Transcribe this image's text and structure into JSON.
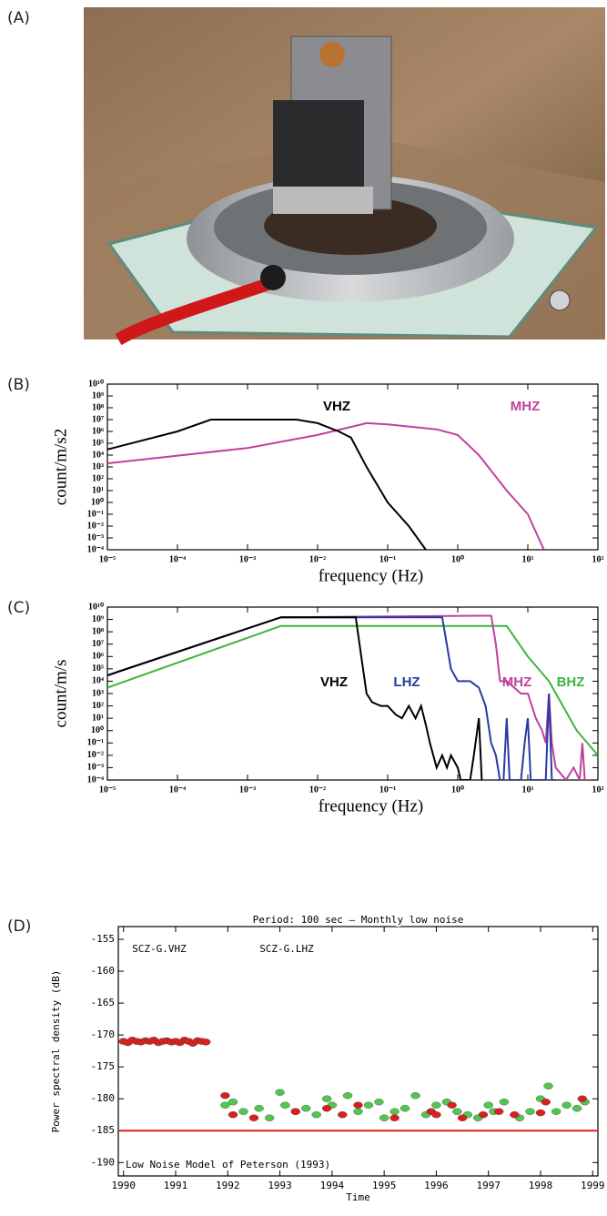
{
  "panel_labels": [
    "(A)",
    "(B)",
    "(C)",
    "(D)"
  ],
  "chart_data": [
    {
      "type": "line",
      "log_x": true,
      "log_y": true,
      "xlabel": "frequency (Hz)",
      "ylabel": "count/m/s2",
      "xlim": [
        1e-05,
        100
      ],
      "ylim": [
        0.0001,
        10000000000
      ],
      "xticks": [
        {
          "value": 1e-05,
          "label": "10⁻⁵"
        },
        {
          "value": 0.0001,
          "label": "10⁻⁴"
        },
        {
          "value": 0.001,
          "label": "10⁻³"
        },
        {
          "value": 0.01,
          "label": "10⁻²"
        },
        {
          "value": 0.1,
          "label": "10⁻¹"
        },
        {
          "value": 1,
          "label": "10⁰"
        },
        {
          "value": 10,
          "label": "10¹"
        },
        {
          "value": 100,
          "label": "10²"
        }
      ],
      "yticks": [
        {
          "value": 0.0001,
          "label": "10⁻⁴"
        },
        {
          "value": 0.001,
          "label": "10⁻³"
        },
        {
          "value": 0.01,
          "label": "10⁻²"
        },
        {
          "value": 0.1,
          "label": "10⁻¹"
        },
        {
          "value": 1,
          "label": "10⁰"
        },
        {
          "value": 10,
          "label": "10¹"
        },
        {
          "value": 100,
          "label": "10²"
        },
        {
          "value": 1000,
          "label": "10³"
        },
        {
          "value": 10000,
          "label": "10⁴"
        },
        {
          "value": 100000,
          "label": "10⁵"
        },
        {
          "value": 1000000,
          "label": "10⁶"
        },
        {
          "value": 10000000,
          "label": "10⁷"
        },
        {
          "value": 100000000,
          "label": "10⁸"
        },
        {
          "value": 1000000000,
          "label": "10⁹"
        },
        {
          "value": 10000000000,
          "label": "10¹⁰"
        }
      ],
      "series": [
        {
          "name": "VHZ",
          "color": "#000000",
          "x": [
            1e-05,
            0.0001,
            0.0003,
            0.001,
            0.005,
            0.01,
            0.02,
            0.03,
            0.05,
            0.1,
            0.2,
            0.35
          ],
          "values": [
            30000,
            1000000,
            10000000,
            10000000,
            10000000,
            5000000,
            1000000,
            300000,
            1000,
            1,
            0.01,
            0.0001
          ]
        },
        {
          "name": "MHZ",
          "color": "#c040a0",
          "x": [
            1e-05,
            0.001,
            0.01,
            0.05,
            0.1,
            0.5,
            1,
            2,
            5,
            10,
            17
          ],
          "values": [
            2000,
            40000,
            500000,
            5000000,
            4000000,
            1500000,
            500000,
            10000,
            10,
            0.1,
            0.0001
          ]
        }
      ]
    },
    {
      "type": "line",
      "log_x": true,
      "log_y": true,
      "xlabel": "frequency (Hz)",
      "ylabel": "count/m/s",
      "xlim": [
        1e-05,
        100
      ],
      "ylim": [
        0.0001,
        10000000000
      ],
      "xticks": [
        {
          "value": 1e-05,
          "label": "10⁻⁵"
        },
        {
          "value": 0.0001,
          "label": "10⁻⁴"
        },
        {
          "value": 0.001,
          "label": "10⁻³"
        },
        {
          "value": 0.01,
          "label": "10⁻²"
        },
        {
          "value": 0.1,
          "label": "10⁻¹"
        },
        {
          "value": 1,
          "label": "10⁰"
        },
        {
          "value": 10,
          "label": "10¹"
        },
        {
          "value": 100,
          "label": "10²"
        }
      ],
      "yticks": [
        {
          "value": 0.0001,
          "label": "10⁻⁴"
        },
        {
          "value": 0.001,
          "label": "10⁻³"
        },
        {
          "value": 0.01,
          "label": "10⁻²"
        },
        {
          "value": 0.1,
          "label": "10⁻¹"
        },
        {
          "value": 1,
          "label": "10⁰"
        },
        {
          "value": 10,
          "label": "10¹"
        },
        {
          "value": 100,
          "label": "10²"
        },
        {
          "value": 1000,
          "label": "10³"
        },
        {
          "value": 10000,
          "label": "10⁴"
        },
        {
          "value": 100000,
          "label": "10⁵"
        },
        {
          "value": 1000000,
          "label": "10⁶"
        },
        {
          "value": 10000000,
          "label": "10⁷"
        },
        {
          "value": 100000000,
          "label": "10⁸"
        },
        {
          "value": 1000000000,
          "label": "10⁹"
        },
        {
          "value": 10000000000,
          "label": "10¹⁰"
        }
      ],
      "series": [
        {
          "name": "VHZ",
          "color": "#000000",
          "x": [
            1e-05,
            0.003,
            0.035,
            0.042,
            0.05,
            0.06,
            0.08,
            0.1,
            0.13,
            0.16,
            0.2,
            0.25,
            0.3,
            0.35,
            0.4,
            0.5,
            0.6,
            0.7,
            0.8,
            1,
            1.1,
            1.3,
            1.5,
            1.7,
            2,
            2.2
          ],
          "values": [
            30000,
            1500000000,
            1500000000,
            1000000,
            1000,
            200,
            100,
            100,
            20,
            10,
            100,
            10,
            100,
            3,
            0.1,
            0.001,
            0.01,
            0.001,
            0.01,
            0.001,
            0.0001,
            0.0001,
            0.0001,
            0.01,
            10,
            0.0001
          ]
        },
        {
          "name": "LHZ",
          "color": "#2a3aa0",
          "x": [
            1e-05,
            0.003,
            0.6,
            0.65,
            0.8,
            1,
            1.5,
            2,
            2.5,
            3,
            3.5,
            4,
            4.5,
            5,
            5.5,
            7,
            8,
            9,
            10,
            11,
            13,
            16,
            18,
            20,
            22,
            25
          ],
          "values": [
            30000,
            1500000000,
            1500000000,
            100000000,
            100000,
            10000,
            10000,
            3000,
            100,
            0.1,
            0.01,
            0.0001,
            0.0001,
            10,
            0.0001,
            0.0001,
            0.0001,
            0.1,
            10,
            0.0001,
            0.0001,
            0.0001,
            0.0001,
            1000,
            0.0001,
            0.0001
          ]
        },
        {
          "name": "MHZ",
          "color": "#c040a0",
          "x": [
            1e-05,
            0.003,
            2,
            3,
            3.5,
            4,
            5,
            8,
            10,
            13,
            16,
            18,
            20,
            22,
            25,
            35,
            45,
            55,
            60,
            65,
            70,
            80
          ],
          "values": [
            30000,
            1500000000,
            2000000000,
            2000000000,
            10000000,
            10000,
            10000,
            1000,
            1000,
            10,
            1,
            0.1,
            1000,
            0.1,
            0.001,
            0.0001,
            0.001,
            0.0001,
            0.1,
            0.0001,
            0.0001,
            0.0001
          ]
        },
        {
          "name": "BHZ",
          "color": "#3cb43c",
          "x": [
            1e-05,
            0.003,
            5,
            10,
            20,
            50,
            100
          ],
          "values": [
            3000,
            300000000,
            300000000,
            1000000,
            10000,
            1,
            0.01
          ]
        }
      ]
    },
    {
      "type": "scatter",
      "title": "Period: 100 sec — Monthly low noise",
      "xlabel": "Time",
      "ylabel": "Power spectral density (dB)",
      "xlim": [
        1989.9,
        1999.1
      ],
      "ylim": [
        -192.1,
        -153
      ],
      "xticks": [
        1990,
        1991,
        1992,
        1993,
        1994,
        1995,
        1996,
        1997,
        1998,
        1999
      ],
      "yticks": [
        -155,
        -160,
        -165,
        -170,
        -175,
        -180,
        -185,
        -190
      ],
      "hline": {
        "value": -185,
        "label": "Low Noise Model of Peterson (1993)",
        "color": "#d82020"
      },
      "series": [
        {
          "name": "SCZ-G.VHZ",
          "color": "#d82020",
          "x": [
            1990.0,
            1990.08,
            1990.17,
            1990.25,
            1990.33,
            1990.42,
            1990.5,
            1990.58,
            1990.67,
            1990.75,
            1990.83,
            1990.92,
            1991.0,
            1991.08,
            1991.17,
            1991.25,
            1991.33,
            1991.42,
            1991.5,
            1991.58,
            1991.95,
            1992.1,
            1992.5,
            1993.3,
            1993.9,
            1994.2,
            1994.5,
            1995.2,
            1995.9,
            1996.0,
            1996.3,
            1996.5,
            1996.9,
            1997.2,
            1997.5,
            1998.0,
            1998.1,
            1998.8
          ],
          "values": [
            -171,
            -171.2,
            -170.8,
            -171,
            -171.1,
            -170.9,
            -171,
            -170.8,
            -171.2,
            -171,
            -170.9,
            -171.1,
            -171,
            -171.2,
            -170.8,
            -171,
            -171.3,
            -170.9,
            -171,
            -171.1,
            -179.5,
            -182.5,
            -183,
            -182,
            -181.5,
            -182.5,
            -181,
            -183,
            -182,
            -182.5,
            -181,
            -183,
            -182.5,
            -182,
            -182.5,
            -182.2,
            -180.5,
            -180
          ]
        },
        {
          "name": "SCZ-G.LHZ",
          "color": "#50c850",
          "x": [
            1991.95,
            1992.1,
            1992.3,
            1992.6,
            1992.8,
            1993.0,
            1993.1,
            1993.3,
            1993.5,
            1993.7,
            1993.9,
            1994.0,
            1994.3,
            1994.5,
            1994.7,
            1994.9,
            1995.0,
            1995.2,
            1995.4,
            1995.6,
            1995.8,
            1996.0,
            1996.2,
            1996.4,
            1996.6,
            1996.8,
            1997.0,
            1997.1,
            1997.3,
            1997.6,
            1997.8,
            1998.0,
            1998.15,
            1998.3,
            1998.5,
            1998.7,
            1998.85
          ],
          "values": [
            -181,
            -180.5,
            -182,
            -181.5,
            -183,
            -179,
            -181,
            -182,
            -181.5,
            -182.5,
            -180,
            -181,
            -179.5,
            -182,
            -181,
            -180.5,
            -183,
            -182,
            -181.5,
            -179.5,
            -182.5,
            -181,
            -180.5,
            -182,
            -182.5,
            -183,
            -181,
            -182,
            -180.5,
            -183,
            -182,
            -180,
            -178,
            -182,
            -181,
            -181.5,
            -180.5
          ]
        }
      ]
    }
  ]
}
